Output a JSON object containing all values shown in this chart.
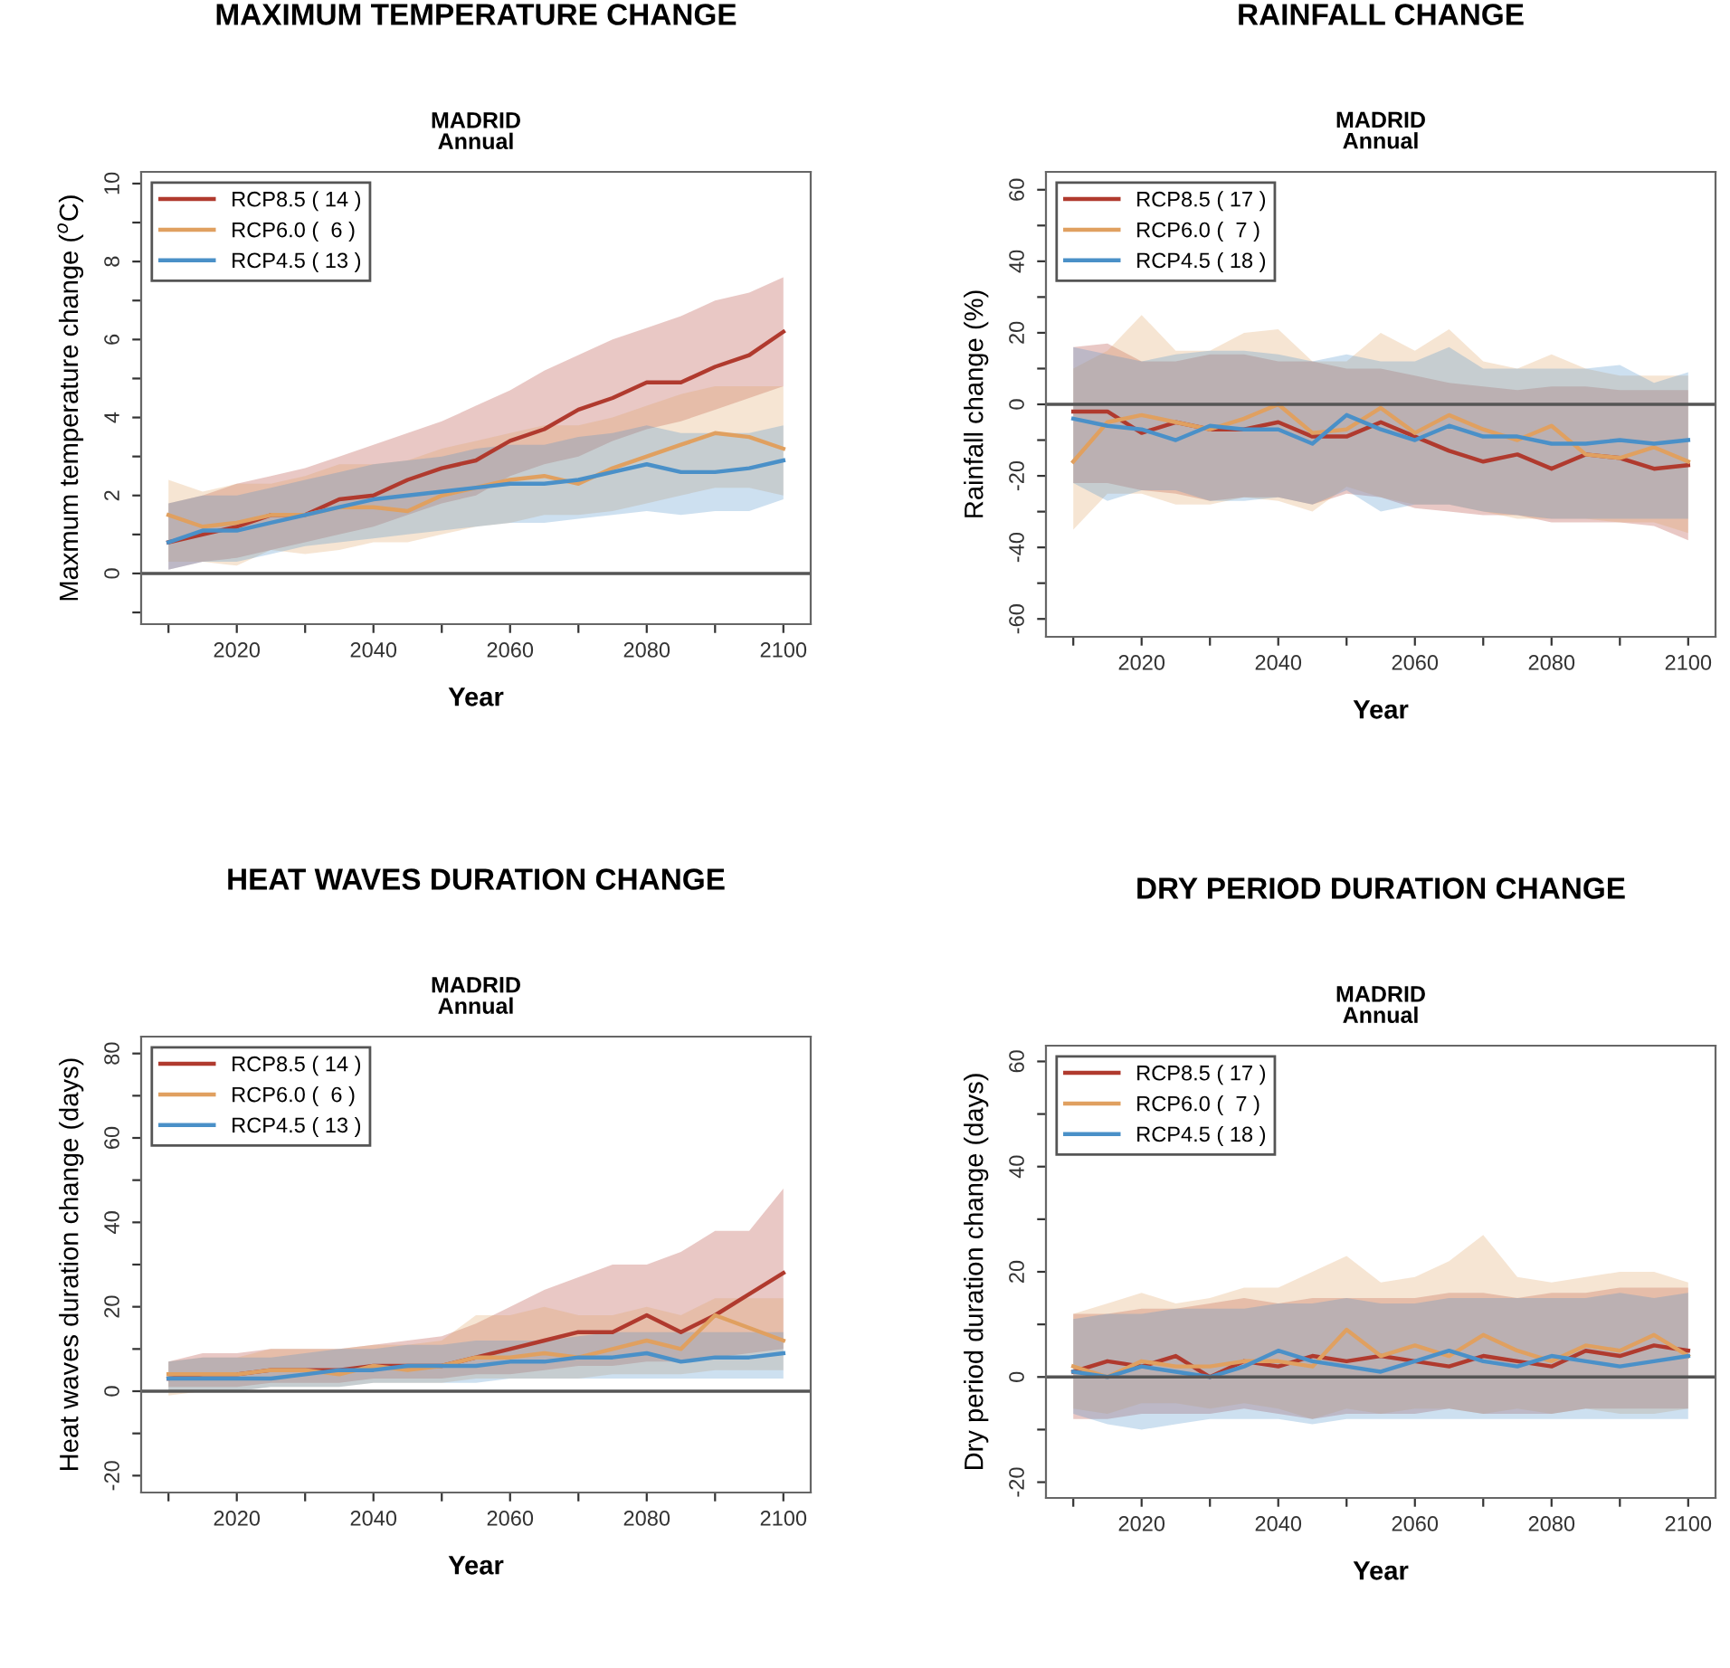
{
  "chart_data": [
    {
      "type": "line",
      "title": "MAXIMUM TEMPERATURE CHANGE",
      "subtitle": "MADRID\nAnnual",
      "xlabel": "Year",
      "ylabel": "Maxmum temperature change ($^{o}$C)",
      "legend": "top left",
      "x": [
        2010,
        2015,
        2020,
        2025,
        2030,
        2035,
        2040,
        2045,
        2050,
        2055,
        2060,
        2065,
        2070,
        2075,
        2080,
        2085,
        2090,
        2095,
        2100
      ],
      "xlim": [
        2006,
        2104
      ],
      "ylim": [
        -1.3,
        10.3
      ],
      "xticks": [
        {
          "value": 2010,
          "label": null
        },
        2020,
        {
          "value": 2030,
          "label": null
        },
        2040,
        {
          "value": 2050,
          "label": null
        },
        2060,
        {
          "value": 2070,
          "label": null
        },
        2080,
        {
          "value": 2090,
          "label": null
        },
        2100
      ],
      "yticks": [
        {
          "value": -1,
          "label": null
        },
        0,
        {
          "value": 1,
          "label": null
        },
        2,
        {
          "value": 3,
          "label": null
        },
        4,
        {
          "value": 5,
          "label": null
        },
        6,
        {
          "value": 7,
          "label": null
        },
        8,
        {
          "value": 9,
          "label": null
        },
        10
      ],
      "ref_lines": [
        {
          "axis": "y",
          "value": 0,
          "color": "#555555"
        }
      ],
      "series": [
        {
          "name": "RCP8.5 ( 14 )",
          "color": "#b03a2e",
          "values": [
            0.8,
            1.0,
            1.2,
            1.5,
            1.5,
            1.9,
            2.0,
            2.4,
            2.7,
            2.9,
            3.4,
            3.7,
            4.2,
            4.5,
            4.9,
            4.9,
            5.3,
            5.6,
            6.2
          ],
          "lower": [
            0.1,
            0.3,
            0.4,
            0.6,
            0.8,
            1.0,
            1.2,
            1.5,
            1.8,
            2.0,
            2.5,
            2.8,
            3.0,
            3.4,
            3.7,
            3.9,
            4.2,
            4.5,
            4.8
          ],
          "upper": [
            1.8,
            2.0,
            2.3,
            2.5,
            2.7,
            3.0,
            3.3,
            3.6,
            3.9,
            4.3,
            4.7,
            5.2,
            5.6,
            6.0,
            6.3,
            6.6,
            7.0,
            7.2,
            7.6
          ]
        },
        {
          "name": "RCP6.0 (  6 )",
          "color": "#e0a060",
          "values": [
            1.5,
            1.2,
            1.3,
            1.5,
            1.5,
            1.7,
            1.7,
            1.6,
            2.0,
            2.2,
            2.4,
            2.5,
            2.3,
            2.7,
            3.0,
            3.3,
            3.6,
            3.5,
            3.2
          ],
          "lower": [
            0.3,
            0.3,
            0.2,
            0.6,
            0.5,
            0.6,
            0.8,
            0.8,
            1.0,
            1.2,
            1.3,
            1.5,
            1.5,
            1.6,
            1.8,
            2.0,
            2.2,
            2.2,
            2.0
          ],
          "upper": [
            2.4,
            2.1,
            2.3,
            2.3,
            2.5,
            2.8,
            2.8,
            2.9,
            3.2,
            3.4,
            3.6,
            3.8,
            3.8,
            4.0,
            4.3,
            4.6,
            4.8,
            4.8,
            4.8
          ]
        },
        {
          "name": "RCP4.5 ( 13 )",
          "color": "#4a90c8",
          "values": [
            0.8,
            1.1,
            1.1,
            1.3,
            1.5,
            1.7,
            1.9,
            2.0,
            2.1,
            2.2,
            2.3,
            2.3,
            2.4,
            2.6,
            2.8,
            2.6,
            2.6,
            2.7,
            2.9
          ],
          "lower": [
            0.1,
            0.3,
            0.3,
            0.5,
            0.7,
            0.8,
            0.9,
            1.0,
            1.1,
            1.2,
            1.3,
            1.3,
            1.4,
            1.5,
            1.6,
            1.5,
            1.6,
            1.6,
            1.9
          ],
          "upper": [
            1.8,
            2.0,
            2.0,
            2.2,
            2.4,
            2.6,
            2.8,
            2.9,
            3.0,
            3.2,
            3.3,
            3.3,
            3.5,
            3.6,
            3.8,
            3.6,
            3.6,
            3.6,
            3.8
          ]
        }
      ]
    },
    {
      "type": "line",
      "title": "RAINFALL CHANGE",
      "subtitle": "MADRID\nAnnual",
      "xlabel": "Year",
      "ylabel": "Rainfall change (%)",
      "legend": "top left",
      "x": [
        2010,
        2015,
        2020,
        2025,
        2030,
        2035,
        2040,
        2045,
        2050,
        2055,
        2060,
        2065,
        2070,
        2075,
        2080,
        2085,
        2090,
        2095,
        2100
      ],
      "xlim": [
        2006,
        2104
      ],
      "ylim": [
        -65,
        65
      ],
      "xticks": [
        {
          "value": 2010,
          "label": null
        },
        2020,
        {
          "value": 2030,
          "label": null
        },
        2040,
        {
          "value": 2050,
          "label": null
        },
        2060,
        {
          "value": 2070,
          "label": null
        },
        2080,
        {
          "value": 2090,
          "label": null
        },
        2100
      ],
      "yticks": [
        -60,
        {
          "value": -50,
          "label": null
        },
        -40,
        {
          "value": -30,
          "label": null
        },
        -20,
        {
          "value": -10,
          "label": null
        },
        0,
        {
          "value": 10,
          "label": null
        },
        20,
        {
          "value": 30,
          "label": null
        },
        40,
        {
          "value": 50,
          "label": null
        },
        60
      ],
      "ref_lines": [
        {
          "axis": "y",
          "value": 0,
          "color": "#555555"
        }
      ],
      "series": [
        {
          "name": "RCP8.5 ( 17 )",
          "color": "#b03a2e",
          "values": [
            -2,
            -2,
            -8,
            -5,
            -7,
            -7,
            -5,
            -9,
            -9,
            -5,
            -9,
            -13,
            -16,
            -14,
            -18,
            -14,
            -15,
            -18,
            -17
          ],
          "lower": [
            -22,
            -22,
            -24,
            -25,
            -27,
            -26,
            -26,
            -28,
            -25,
            -26,
            -29,
            -30,
            -31,
            -31,
            -33,
            -33,
            -33,
            -34,
            -38
          ],
          "upper": [
            16,
            17,
            12,
            12,
            14,
            14,
            12,
            12,
            10,
            10,
            8,
            6,
            5,
            4,
            5,
            5,
            4,
            4,
            4
          ]
        },
        {
          "name": "RCP6.0 (  7 )",
          "color": "#e0a060",
          "values": [
            -16,
            -5,
            -3,
            -5,
            -7,
            -4,
            0,
            -8,
            -7,
            -1,
            -8,
            -3,
            -7,
            -10,
            -6,
            -14,
            -15,
            -12,
            -16
          ],
          "lower": [
            -35,
            -25,
            -25,
            -28,
            -28,
            -26,
            -27,
            -30,
            -23,
            -26,
            -28,
            -28,
            -30,
            -32,
            -32,
            -32,
            -33,
            -33,
            -36
          ],
          "upper": [
            10,
            15,
            25,
            15,
            15,
            20,
            21,
            12,
            12,
            20,
            15,
            21,
            12,
            10,
            14,
            10,
            8,
            8,
            8
          ]
        },
        {
          "name": "RCP4.5 ( 18 )",
          "color": "#4a90c8",
          "values": [
            -4,
            -6,
            -7,
            -10,
            -6,
            -7,
            -7,
            -11,
            -3,
            -7,
            -10,
            -6,
            -9,
            -9,
            -11,
            -11,
            -10,
            -11,
            -10
          ],
          "lower": [
            -22,
            -27,
            -24,
            -24,
            -27,
            -27,
            -26,
            -28,
            -24,
            -30,
            -28,
            -28,
            -30,
            -31,
            -32,
            -32,
            -32,
            -32,
            -32
          ],
          "upper": [
            16,
            14,
            12,
            14,
            15,
            15,
            14,
            12,
            14,
            12,
            12,
            16,
            10,
            10,
            10,
            10,
            11,
            6,
            9
          ]
        }
      ]
    },
    {
      "type": "line",
      "title": "HEAT WAVES DURATION CHANGE",
      "subtitle": "MADRID\nAnnual",
      "xlabel": "Year",
      "ylabel": "Heat waves duration change (days)",
      "legend": "top left",
      "x": [
        2010,
        2015,
        2020,
        2025,
        2030,
        2035,
        2040,
        2045,
        2050,
        2055,
        2060,
        2065,
        2070,
        2075,
        2080,
        2085,
        2090,
        2095,
        2100
      ],
      "xlim": [
        2006,
        2104
      ],
      "ylim": [
        -24,
        84
      ],
      "xticks": [
        {
          "value": 2010,
          "label": null
        },
        2020,
        {
          "value": 2030,
          "label": null
        },
        2040,
        {
          "value": 2050,
          "label": null
        },
        2060,
        {
          "value": 2070,
          "label": null
        },
        2080,
        {
          "value": 2090,
          "label": null
        },
        2100
      ],
      "yticks": [
        -20,
        {
          "value": -10,
          "label": null
        },
        0,
        {
          "value": 10,
          "label": null
        },
        20,
        {
          "value": 30,
          "label": null
        },
        40,
        {
          "value": 50,
          "label": null
        },
        60,
        {
          "value": 70,
          "label": null
        },
        80
      ],
      "ref_lines": [
        {
          "axis": "y",
          "value": 0,
          "color": "#555555"
        }
      ],
      "series": [
        {
          "name": "RCP8.5 ( 14 )",
          "color": "#b03a2e",
          "values": [
            3,
            4,
            4,
            5,
            5,
            5,
            6,
            6,
            6,
            8,
            10,
            12,
            14,
            14,
            18,
            14,
            18,
            23,
            28
          ],
          "lower": [
            1,
            1,
            1,
            2,
            2,
            2,
            3,
            3,
            3,
            4,
            4,
            5,
            6,
            6,
            7,
            7,
            8,
            9,
            10
          ],
          "upper": [
            7,
            9,
            9,
            10,
            10,
            10,
            11,
            12,
            13,
            16,
            20,
            24,
            27,
            30,
            30,
            33,
            38,
            38,
            48
          ]
        },
        {
          "name": "RCP6.0 (  6 )",
          "color": "#e0a060",
          "values": [
            4,
            4,
            4,
            5,
            5,
            4,
            6,
            5,
            6,
            8,
            8,
            9,
            8,
            10,
            12,
            10,
            18,
            15,
            12
          ],
          "lower": [
            -1,
            0,
            0,
            1,
            1,
            1,
            2,
            2,
            2,
            3,
            3,
            3,
            3,
            4,
            4,
            4,
            5,
            5,
            5
          ],
          "upper": [
            7,
            8,
            8,
            10,
            10,
            10,
            11,
            11,
            12,
            18,
            18,
            20,
            18,
            18,
            20,
            18,
            22,
            22,
            22
          ]
        },
        {
          "name": "RCP4.5 ( 13 )",
          "color": "#4a90c8",
          "values": [
            3,
            3,
            3,
            3,
            4,
            5,
            5,
            6,
            6,
            6,
            7,
            7,
            8,
            8,
            9,
            7,
            8,
            8,
            9
          ],
          "lower": [
            0,
            0,
            0,
            1,
            1,
            1,
            2,
            2,
            2,
            2,
            3,
            3,
            3,
            3,
            3,
            3,
            3,
            3,
            3
          ],
          "upper": [
            7,
            8,
            8,
            8,
            9,
            10,
            10,
            11,
            11,
            12,
            12,
            12,
            13,
            14,
            14,
            14,
            14,
            14,
            14
          ]
        }
      ]
    },
    {
      "type": "line",
      "title": "DRY PERIOD DURATION CHANGE",
      "subtitle": "MADRID\nAnnual",
      "xlabel": "Year",
      "ylabel": "Dry period duration change (days)",
      "legend": "top left",
      "x": [
        2010,
        2015,
        2020,
        2025,
        2030,
        2035,
        2040,
        2045,
        2050,
        2055,
        2060,
        2065,
        2070,
        2075,
        2080,
        2085,
        2090,
        2095,
        2100
      ],
      "xlim": [
        2006,
        2104
      ],
      "ylim": [
        -23,
        63
      ],
      "xticks": [
        {
          "value": 2010,
          "label": null
        },
        2020,
        {
          "value": 2030,
          "label": null
        },
        2040,
        {
          "value": 2050,
          "label": null
        },
        2060,
        {
          "value": 2070,
          "label": null
        },
        2080,
        {
          "value": 2090,
          "label": null
        },
        2100
      ],
      "yticks": [
        -20,
        {
          "value": -10,
          "label": null
        },
        0,
        {
          "value": 10,
          "label": null
        },
        20,
        {
          "value": 30,
          "label": null
        },
        40,
        {
          "value": 50,
          "label": null
        },
        60
      ],
      "ref_lines": [
        {
          "axis": "y",
          "value": 0,
          "color": "#555555"
        }
      ],
      "series": [
        {
          "name": "RCP8.5 ( 17 )",
          "color": "#b03a2e",
          "values": [
            1,
            3,
            2,
            4,
            0,
            3,
            2,
            4,
            3,
            4,
            3,
            2,
            4,
            3,
            2,
            5,
            4,
            6,
            5
          ],
          "lower": [
            -8,
            -8,
            -7,
            -7,
            -7,
            -6,
            -7,
            -8,
            -7,
            -7,
            -7,
            -6,
            -7,
            -7,
            -7,
            -6,
            -6,
            -6,
            -6
          ],
          "upper": [
            12,
            12,
            13,
            13,
            14,
            15,
            14,
            15,
            15,
            15,
            15,
            16,
            16,
            15,
            16,
            16,
            17,
            17,
            17
          ]
        },
        {
          "name": "RCP6.0 (  7 )",
          "color": "#e0a060",
          "values": [
            2,
            0,
            3,
            2,
            2,
            3,
            3,
            2,
            9,
            4,
            6,
            4,
            8,
            5,
            3,
            6,
            5,
            8,
            4
          ],
          "lower": [
            -6,
            -7,
            -5,
            -5,
            -6,
            -5,
            -6,
            -8,
            -6,
            -7,
            -6,
            -6,
            -7,
            -6,
            -7,
            -6,
            -7,
            -7,
            -6
          ],
          "upper": [
            12,
            14,
            16,
            14,
            15,
            17,
            17,
            20,
            23,
            18,
            19,
            22,
            27,
            19,
            18,
            19,
            20,
            20,
            18
          ]
        },
        {
          "name": "RCP4.5 ( 18 )",
          "color": "#4a90c8",
          "values": [
            1,
            0,
            2,
            1,
            0,
            2,
            5,
            3,
            2,
            1,
            3,
            5,
            3,
            2,
            4,
            3,
            2,
            3,
            4
          ],
          "lower": [
            -7,
            -9,
            -10,
            -9,
            -8,
            -8,
            -8,
            -9,
            -8,
            -8,
            -8,
            -8,
            -8,
            -8,
            -8,
            -8,
            -8,
            -8,
            -8
          ],
          "upper": [
            11,
            12,
            12,
            13,
            13,
            13,
            14,
            14,
            15,
            14,
            14,
            15,
            15,
            15,
            15,
            15,
            16,
            15,
            16
          ]
        }
      ]
    }
  ]
}
